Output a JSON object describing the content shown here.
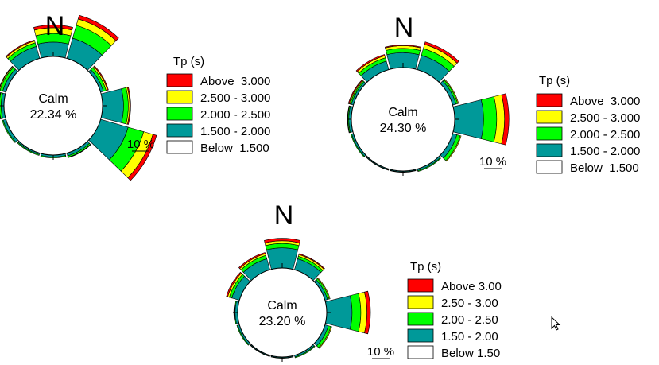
{
  "colors": {
    "Above": "#ff0000",
    "Yellow": "#ffff00",
    "Green": "#00ff00",
    "Teal": "#009999",
    "Below": "#ffffff",
    "Outline": "#000000"
  },
  "chart_data": [
    {
      "type": "windrose",
      "north_label": "N",
      "calm_label": "Calm",
      "calm_value": "22.34 %",
      "scale_label": "10 %",
      "legend_title": "Tp (s)",
      "legend": [
        "Above  3.000",
        "2.500 - 3.000",
        "2.000 - 2.500",
        "1.500 - 2.000",
        "Below  1.500"
      ],
      "bins": [
        "1.500 - 2.000",
        "2.000 - 2.500",
        "2.500 - 3.000",
        "Above  3.000"
      ],
      "directions_deg": [
        0,
        30,
        60,
        90,
        120,
        150,
        180,
        210,
        240,
        270,
        300,
        330
      ],
      "values_percent": [
        [
          1.5,
          0.9,
          0.6,
          0.3
        ],
        [
          2.2,
          1.4,
          0.7,
          0.4
        ],
        [
          0.3,
          0.3,
          0.15,
          0.1
        ],
        [
          2.2,
          0.5,
          0.15,
          0.1
        ],
        [
          3.0,
          1.7,
          1.0,
          0.4
        ],
        [
          0.3,
          0.15,
          0.05,
          0.0
        ],
        [
          0.2,
          0.1,
          0.0,
          0.0
        ],
        [
          0.15,
          0.1,
          0.0,
          0.0
        ],
        [
          0.3,
          0.1,
          0.0,
          0.0
        ],
        [
          0.3,
          0.2,
          0.05,
          0.0
        ],
        [
          0.35,
          0.3,
          0.1,
          0.05
        ],
        [
          1.3,
          0.4,
          0.2,
          0.1
        ]
      ]
    },
    {
      "type": "windrose",
      "north_label": "N",
      "calm_label": "Calm",
      "calm_value": "24.30 %",
      "scale_label": "10 %",
      "legend_title": "Tp (s)",
      "legend": [
        "Above  3.000",
        "2.500 - 3.000",
        "2.000 - 2.500",
        "1.500 - 2.000",
        "Below  1.500"
      ],
      "bins": [
        "1.500 - 2.000",
        "2.000 - 2.500",
        "2.500 - 3.000",
        "Above  3.000"
      ],
      "directions_deg": [
        0,
        30,
        60,
        90,
        120,
        150,
        180,
        210,
        240,
        270,
        300,
        330
      ],
      "values_percent": [
        [
          1.7,
          0.5,
          0.3,
          0.1
        ],
        [
          1.7,
          0.8,
          0.5,
          0.3
        ],
        [
          0.4,
          0.2,
          0.1,
          0.0
        ],
        [
          3.3,
          1.5,
          0.9,
          0.5
        ],
        [
          0.5,
          0.4,
          0.1,
          0.0
        ],
        [
          0.2,
          0.1,
          0.0,
          0.0
        ],
        [
          0.1,
          0.05,
          0.0,
          0.0
        ],
        [
          0.1,
          0.05,
          0.0,
          0.0
        ],
        [
          0.2,
          0.1,
          0.0,
          0.0
        ],
        [
          0.3,
          0.1,
          0.05,
          0.0
        ],
        [
          0.25,
          0.15,
          0.1,
          0.1
        ],
        [
          1.0,
          0.4,
          0.25,
          0.15
        ]
      ]
    },
    {
      "type": "windrose",
      "north_label": "N",
      "calm_label": "Calm",
      "calm_value": "23.20 %",
      "scale_label": "10 %",
      "legend_title": "Tp (s)",
      "legend": [
        "Above 3.00",
        "2.50 - 3.00",
        "2.00 - 2.50",
        "1.50 - 2.00",
        "Below 1.50"
      ],
      "bins": [
        "1.50 - 2.00",
        "2.00 - 2.50",
        "2.50 - 3.00",
        "Above 3.00"
      ],
      "directions_deg": [
        0,
        30,
        60,
        90,
        120,
        150,
        180,
        210,
        240,
        270,
        300,
        330
      ],
      "values_percent": [
        [
          2.3,
          0.5,
          0.3,
          0.3
        ],
        [
          1.3,
          0.3,
          0.2,
          0.1
        ],
        [
          0.3,
          0.2,
          0.1,
          0.0
        ],
        [
          2.9,
          1.0,
          0.7,
          0.4
        ],
        [
          0.4,
          0.3,
          0.1,
          0.0
        ],
        [
          0.2,
          0.1,
          0.0,
          0.0
        ],
        [
          0.1,
          0.05,
          0.0,
          0.0
        ],
        [
          0.1,
          0.05,
          0.0,
          0.0
        ],
        [
          0.2,
          0.1,
          0.0,
          0.0
        ],
        [
          0.3,
          0.1,
          0.05,
          0.0
        ],
        [
          0.9,
          0.3,
          0.2,
          0.15
        ],
        [
          1.3,
          0.4,
          0.2,
          0.15
        ]
      ]
    }
  ]
}
